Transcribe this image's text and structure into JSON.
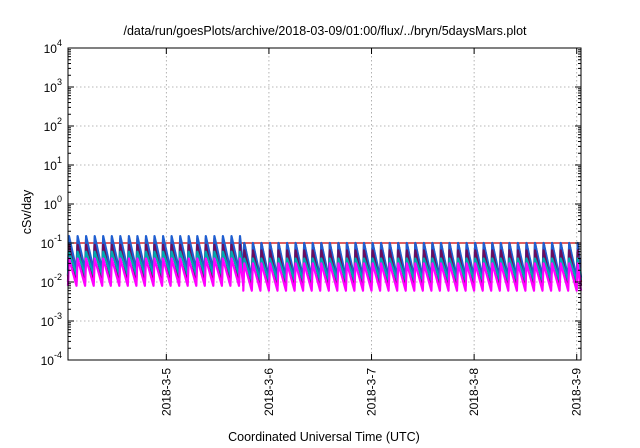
{
  "chart_data": {
    "type": "line",
    "title": "/data/run/goesPlots/archive/2018-03-09/01:00/flux/../bryn/5daysMars.plot",
    "xlabel": "Coordinated Universal Time (UTC)",
    "ylabel": "cSv/day",
    "xlim": [
      "2018-03-04T01:00",
      "2018-03-09T01:00"
    ],
    "ylim": [
      0.0001,
      10000
    ],
    "yscale": "log",
    "grid": true,
    "x_ticks": [
      {
        "value": "2018-03-05T00:00",
        "label": "2018-3-5"
      },
      {
        "value": "2018-03-06T00:00",
        "label": "2018-3-6"
      },
      {
        "value": "2018-03-07T00:00",
        "label": "2018-3-7"
      },
      {
        "value": "2018-03-08T00:00",
        "label": "2018-3-8"
      },
      {
        "value": "2018-03-09T00:00",
        "label": "2018-3-9"
      }
    ],
    "y_ticks": [
      {
        "value": 0.0001,
        "base": "10",
        "exp": "-4"
      },
      {
        "value": 0.001,
        "base": "10",
        "exp": "-3"
      },
      {
        "value": 0.01,
        "base": "10",
        "exp": "-2"
      },
      {
        "value": 0.1,
        "base": "10",
        "exp": "-1"
      },
      {
        "value": 1,
        "base": "10",
        "exp": "0"
      },
      {
        "value": 10,
        "base": "10",
        "exp": "1"
      },
      {
        "value": 100,
        "base": "10",
        "exp": "2"
      },
      {
        "value": 1000,
        "base": "10",
        "exp": "3"
      },
      {
        "value": 10000,
        "base": "10",
        "exp": "4"
      }
    ],
    "sawtooth": {
      "period_hours": 2.0,
      "segment_a": {
        "start": "2018-03-04T01:00",
        "end": "2018-03-05T18:00"
      },
      "segment_b": {
        "start": "2018-03-05T18:00",
        "end": "2018-03-09T01:00"
      }
    },
    "series": [
      {
        "color": "#cc0000",
        "baseline": 0.1,
        "peak_a": 0.13,
        "trough_a": 0.014,
        "peak_b": 0.1,
        "trough_b": 0.01
      },
      {
        "color": "#1f5fd1",
        "baseline": null,
        "peak_a": 0.15,
        "trough_a": 0.02,
        "peak_b": 0.1,
        "trough_b": 0.013
      },
      {
        "color": "#6a0d5e",
        "baseline": null,
        "peak_a": 0.09,
        "trough_a": 0.01,
        "peak_b": 0.065,
        "trough_b": 0.008
      },
      {
        "color": "#00a8b0",
        "baseline": null,
        "peak_a": 0.06,
        "trough_a": 0.015,
        "peak_b": 0.04,
        "trough_b": 0.011
      },
      {
        "color": "#ff00ff",
        "baseline": null,
        "peak_a": 0.04,
        "trough_a": 0.008,
        "peak_b": 0.03,
        "trough_b": 0.006
      }
    ]
  }
}
